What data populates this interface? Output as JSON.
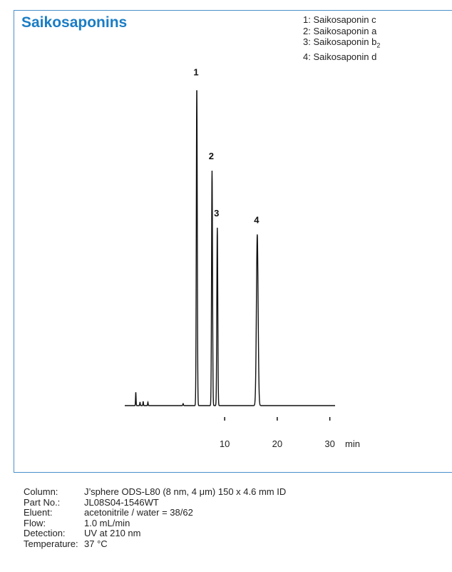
{
  "title": "Saikosaponins",
  "legend": [
    {
      "id": "1",
      "prefix": "1: Saikosaponin ",
      "suffix": "c",
      "sub": ""
    },
    {
      "id": "2",
      "prefix": "2: Saikosaponin ",
      "suffix": "a",
      "sub": ""
    },
    {
      "id": "3",
      "prefix": "3: Saikosaponin ",
      "suffix": "b",
      "sub": "2"
    },
    {
      "id": "4",
      "prefix": "4: Saikosaponin ",
      "suffix": "d",
      "sub": ""
    }
  ],
  "chart_data": {
    "type": "line",
    "xlabel": "min",
    "ylabel": "",
    "xticks": [
      "10",
      "20",
      "30"
    ],
    "xlim": [
      -9,
      31
    ],
    "ylim": [
      0,
      1.0
    ],
    "series": [
      {
        "peaks": [
          {
            "label": "1",
            "rt": 4.7,
            "height": 0.95,
            "width": 0.09
          },
          {
            "label": "2",
            "rt": 7.6,
            "height": 0.7,
            "width": 0.09
          },
          {
            "label": "3",
            "rt": 8.6,
            "height": 0.53,
            "width": 0.09
          },
          {
            "label": "4",
            "rt": 16.2,
            "height": 0.51,
            "width": 0.16
          }
        ],
        "minor_peaks": [
          {
            "rt": -6.9,
            "height": 0.04,
            "width": 0.05
          },
          {
            "rt": -6.1,
            "height": 0.01,
            "width": 0.05
          },
          {
            "rt": -5.5,
            "height": 0.012,
            "width": 0.05
          },
          {
            "rt": -4.6,
            "height": 0.01,
            "width": 0.05
          },
          {
            "rt": 2.1,
            "height": 0.006,
            "width": 0.06
          }
        ]
      }
    ]
  },
  "conditions": [
    {
      "key": "Column:",
      "value": "J’sphere ODS-L80  (8 nm, 4 μm) 150 x 4.6 mm ID"
    },
    {
      "key": "Part No.:",
      "value": "JL08S04-1546WT"
    },
    {
      "key": "Eluent:",
      "value": "acetonitrile / water = 38/62"
    },
    {
      "key": "Flow:",
      "value": "1.0 mL/min"
    },
    {
      "key": "Detection:",
      "value": "UV at 210 nm"
    },
    {
      "key": "Temperature:",
      "value": "37 °C"
    }
  ]
}
